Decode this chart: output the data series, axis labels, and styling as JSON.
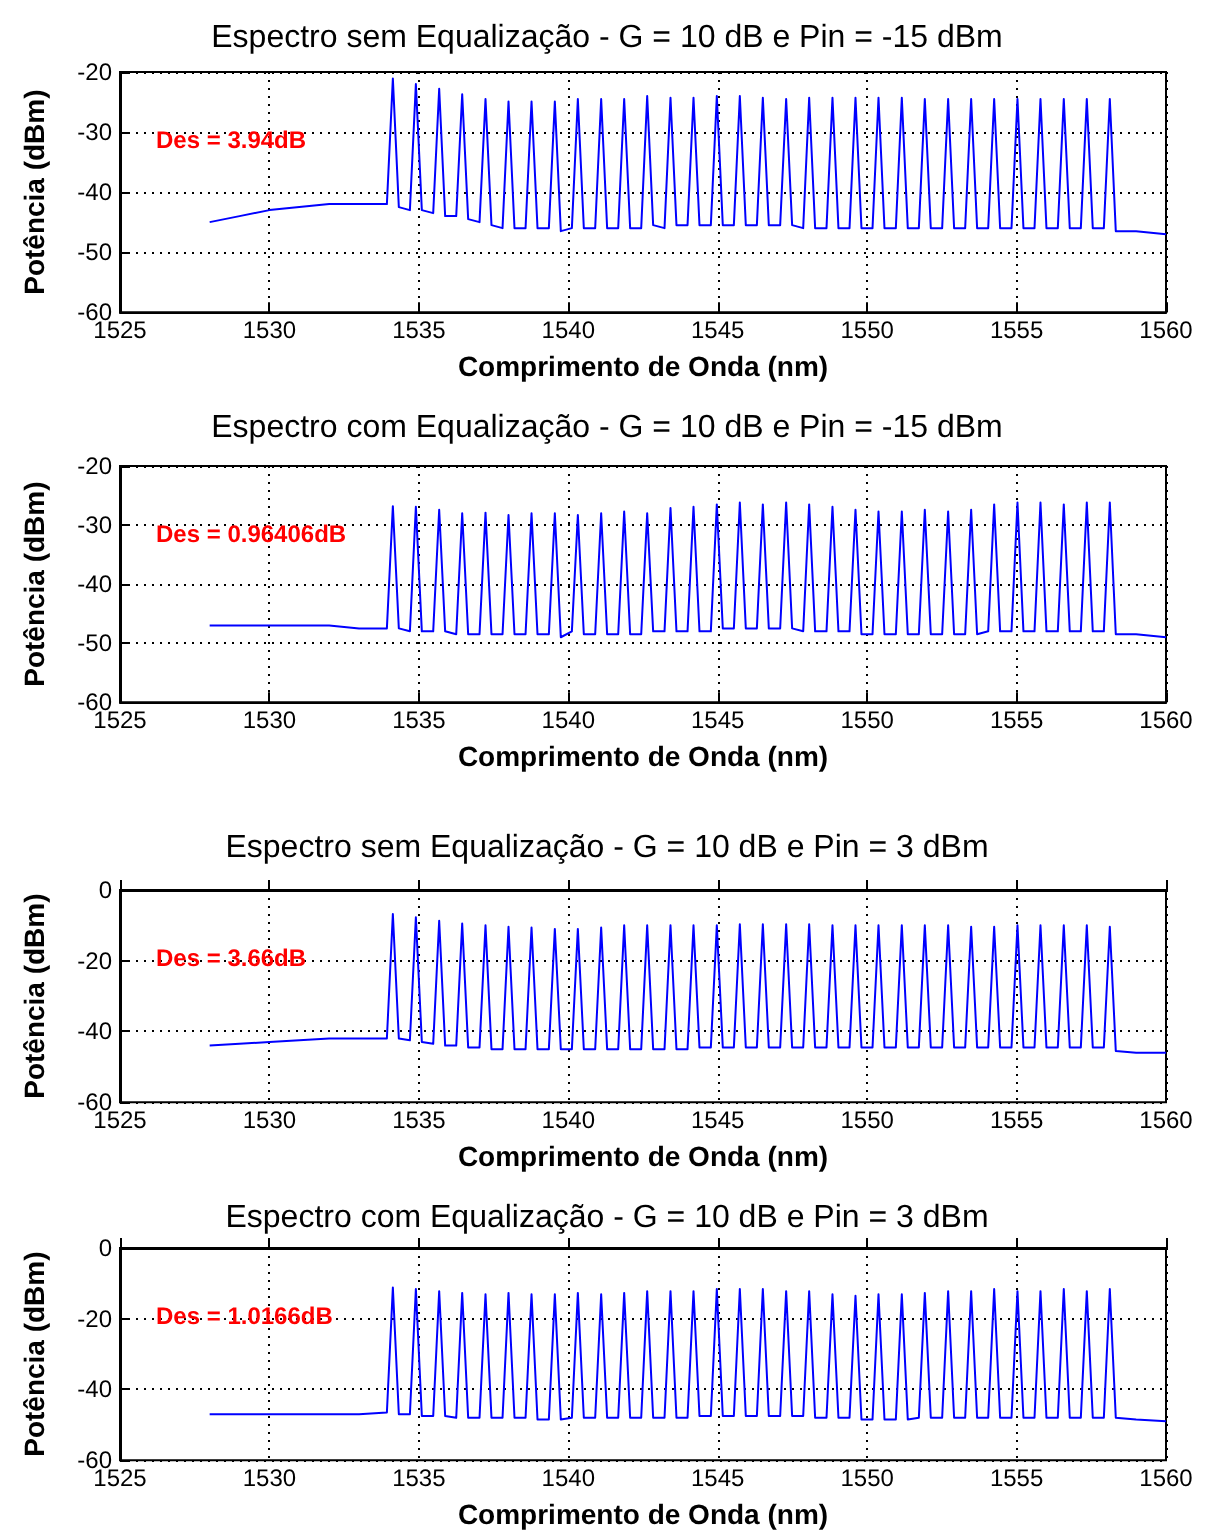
{
  "chart_data": [
    {
      "type": "line",
      "title": "Espectro sem Equalização - G = 10 dB e Pin = -15 dBm",
      "xlabel": "Comprimento de Onda (nm)",
      "ylabel": "Potência (dBm)",
      "annotations": [
        "Des = 3.94dB"
      ],
      "x": [
        1528,
        1529,
        1530,
        1531,
        1532,
        1533,
        1533.93,
        1534.13,
        1534.33,
        1534.7,
        1534.9,
        1535.1,
        1535.48,
        1535.68,
        1535.88,
        1536.25,
        1536.45,
        1536.65,
        1537.03,
        1537.23,
        1537.43,
        1537.8,
        1538.0,
        1538.2,
        1538.57,
        1538.77,
        1538.97,
        1539.35,
        1539.55,
        1539.75,
        1540.12,
        1540.32,
        1540.52,
        1540.9,
        1541.1,
        1541.3,
        1541.67,
        1541.87,
        1542.07,
        1542.44,
        1542.64,
        1542.84,
        1543.22,
        1543.42,
        1543.62,
        1543.99,
        1544.19,
        1544.39,
        1544.77,
        1544.97,
        1545.17,
        1545.54,
        1545.74,
        1545.94,
        1546.31,
        1546.51,
        1546.71,
        1547.09,
        1547.29,
        1547.49,
        1547.86,
        1548.06,
        1548.26,
        1548.64,
        1548.84,
        1549.04,
        1549.41,
        1549.61,
        1549.81,
        1550.18,
        1550.38,
        1550.58,
        1550.96,
        1551.16,
        1551.36,
        1551.73,
        1551.93,
        1552.13,
        1552.51,
        1552.71,
        1552.91,
        1553.28,
        1553.48,
        1553.68,
        1554.05,
        1554.25,
        1554.45,
        1554.83,
        1555.03,
        1555.23,
        1555.6,
        1555.8,
        1556.0,
        1556.38,
        1556.58,
        1556.78,
        1557.15,
        1557.35,
        1557.55,
        1557.92,
        1558.12,
        1558.32,
        1559,
        1560
      ],
      "series": [
        {
          "color": "#0000ff",
          "values": [
            -45,
            -44,
            -43,
            -42.5,
            -42,
            -42,
            -42,
            -21.1,
            -42.5,
            -43,
            -22,
            -43,
            -43.5,
            -22.8,
            -44,
            -44,
            -23.7,
            -44.5,
            -45,
            -24.5,
            -45.5,
            -46,
            -24.9,
            -46,
            -46,
            -24.9,
            -46,
            -46,
            -24.9,
            -46.5,
            -46,
            -24.5,
            -46,
            -46,
            -24.5,
            -46,
            -46,
            -24.5,
            -46,
            -46,
            -24,
            -45.5,
            -46,
            -24.3,
            -45.5,
            -45.5,
            -24.3,
            -45.5,
            -45.5,
            -24,
            -45.5,
            -45.5,
            -24,
            -45.5,
            -45.5,
            -24.3,
            -45.5,
            -45.5,
            -24.5,
            -45.5,
            -46,
            -24.3,
            -46,
            -46,
            -24.3,
            -46,
            -46,
            -24.3,
            -46,
            -46,
            -24.3,
            -46,
            -46,
            -24.3,
            -46,
            -46,
            -24.5,
            -46,
            -46,
            -24.5,
            -46,
            -46,
            -24.5,
            -46,
            -46,
            -24.5,
            -46,
            -46,
            -24.5,
            -46,
            -46,
            -24.5,
            -46,
            -46,
            -24.5,
            -46,
            -46,
            -24.5,
            -46,
            -46,
            -24.5,
            -46.5,
            -46.5,
            -47
          ]
        }
      ],
      "xlim": [
        1525,
        1560
      ],
      "xticks": [
        1525,
        1530,
        1535,
        1540,
        1545,
        1550,
        1555,
        1560
      ],
      "ylim": [
        -60,
        -20
      ],
      "yticks": [
        -60,
        -50,
        -40,
        -30,
        -20
      ],
      "grid": true
    },
    {
      "type": "line",
      "title": "Espectro com Equalização - G = 10 dB e Pin = -15 dBm",
      "xlabel": "Comprimento de Onda (nm)",
      "ylabel": "Potência (dBm)",
      "annotations": [
        "Des = 0.96406dB"
      ],
      "x": [
        1528,
        1529,
        1530,
        1531,
        1532,
        1533,
        1533.93,
        1534.13,
        1534.33,
        1534.7,
        1534.9,
        1535.1,
        1535.48,
        1535.68,
        1535.88,
        1536.25,
        1536.45,
        1536.65,
        1537.03,
        1537.23,
        1537.43,
        1537.8,
        1538.0,
        1538.2,
        1538.57,
        1538.77,
        1538.97,
        1539.35,
        1539.55,
        1539.75,
        1540.12,
        1540.32,
        1540.52,
        1540.9,
        1541.1,
        1541.3,
        1541.67,
        1541.87,
        1542.07,
        1542.44,
        1542.64,
        1542.84,
        1543.22,
        1543.42,
        1543.62,
        1543.99,
        1544.19,
        1544.39,
        1544.77,
        1544.97,
        1545.17,
        1545.54,
        1545.74,
        1545.94,
        1546.31,
        1546.51,
        1546.71,
        1547.09,
        1547.29,
        1547.49,
        1547.86,
        1548.06,
        1548.26,
        1548.64,
        1548.84,
        1549.04,
        1549.41,
        1549.61,
        1549.81,
        1550.18,
        1550.38,
        1550.58,
        1550.96,
        1551.16,
        1551.36,
        1551.73,
        1551.93,
        1552.13,
        1552.51,
        1552.71,
        1552.91,
        1553.28,
        1553.48,
        1553.68,
        1554.05,
        1554.25,
        1554.45,
        1554.83,
        1555.03,
        1555.23,
        1555.6,
        1555.8,
        1556.0,
        1556.38,
        1556.58,
        1556.78,
        1557.15,
        1557.35,
        1557.55,
        1557.92,
        1558.12,
        1558.32,
        1559,
        1560
      ],
      "series": [
        {
          "color": "#0000ff",
          "values": [
            -47,
            -47,
            -47,
            -47,
            -47,
            -47.5,
            -47.5,
            -26.8,
            -47.5,
            -48,
            -26.9,
            -48,
            -48,
            -27.4,
            -48,
            -48.5,
            -28,
            -48.5,
            -48.5,
            -27.9,
            -48.5,
            -48.5,
            -28.3,
            -48.5,
            -48.5,
            -28,
            -48.5,
            -48.5,
            -28,
            -49,
            -48,
            -28.3,
            -48.5,
            -48.5,
            -28,
            -48.5,
            -48.5,
            -27.7,
            -48.5,
            -48.5,
            -28,
            -48,
            -48,
            -27.1,
            -48,
            -48,
            -26.9,
            -48,
            -48,
            -26.5,
            -47.5,
            -47.5,
            -26.2,
            -47.5,
            -47.5,
            -26.5,
            -47.5,
            -47.5,
            -26.2,
            -47.5,
            -48,
            -26.5,
            -48,
            -48,
            -26.9,
            -48,
            -48,
            -27.4,
            -48.5,
            -48.5,
            -27.7,
            -48.5,
            -48.5,
            -27.7,
            -48.5,
            -48.5,
            -27.4,
            -48.5,
            -48.5,
            -27.7,
            -48.5,
            -48.5,
            -27.4,
            -48.5,
            -48,
            -26.5,
            -48,
            -48,
            -26.2,
            -48,
            -48,
            -26.2,
            -48,
            -48,
            -26.5,
            -48,
            -48,
            -26.2,
            -48,
            -48,
            -26.2,
            -48.5,
            -48.5,
            -49
          ]
        }
      ],
      "xlim": [
        1525,
        1560
      ],
      "xticks": [
        1525,
        1530,
        1535,
        1540,
        1545,
        1550,
        1555,
        1560
      ],
      "ylim": [
        -60,
        -20
      ],
      "yticks": [
        -60,
        -50,
        -40,
        -30,
        -20
      ],
      "grid": true
    },
    {
      "type": "line",
      "title": "Espectro sem Equalização - G = 10 dB e Pin = 3 dBm",
      "xlabel": "Comprimento de Onda (nm)",
      "ylabel": "Potência (dBm)",
      "annotations": [
        "Des = 3.66dB"
      ],
      "x": [
        1528,
        1529,
        1530,
        1531,
        1532,
        1533,
        1533.93,
        1534.13,
        1534.33,
        1534.7,
        1534.9,
        1535.1,
        1535.48,
        1535.68,
        1535.88,
        1536.25,
        1536.45,
        1536.65,
        1537.03,
        1537.23,
        1537.43,
        1537.8,
        1538.0,
        1538.2,
        1538.57,
        1538.77,
        1538.97,
        1539.35,
        1539.55,
        1539.75,
        1540.12,
        1540.32,
        1540.52,
        1540.9,
        1541.1,
        1541.3,
        1541.67,
        1541.87,
        1542.07,
        1542.44,
        1542.64,
        1542.84,
        1543.22,
        1543.42,
        1543.62,
        1543.99,
        1544.19,
        1544.39,
        1544.77,
        1544.97,
        1545.17,
        1545.54,
        1545.74,
        1545.94,
        1546.31,
        1546.51,
        1546.71,
        1547.09,
        1547.29,
        1547.49,
        1547.86,
        1548.06,
        1548.26,
        1548.64,
        1548.84,
        1549.04,
        1549.41,
        1549.61,
        1549.81,
        1550.18,
        1550.38,
        1550.58,
        1550.96,
        1551.16,
        1551.36,
        1551.73,
        1551.93,
        1552.13,
        1552.51,
        1552.71,
        1552.91,
        1553.28,
        1553.48,
        1553.68,
        1554.05,
        1554.25,
        1554.45,
        1554.83,
        1555.03,
        1555.23,
        1555.6,
        1555.8,
        1556.0,
        1556.38,
        1556.58,
        1556.78,
        1557.15,
        1557.35,
        1557.55,
        1557.92,
        1558.12,
        1558.32,
        1559,
        1560
      ],
      "series": [
        {
          "color": "#0000ff",
          "values": [
            -44,
            -43.5,
            -43,
            -42.5,
            -42,
            -42,
            -42,
            -6.8,
            -42,
            -42.5,
            -7.7,
            -43,
            -43.5,
            -8.7,
            -44,
            -44,
            -9.5,
            -44.5,
            -44.5,
            -10,
            -45,
            -45,
            -10.4,
            -45,
            -45,
            -10.6,
            -45,
            -45,
            -11,
            -45,
            -45,
            -11,
            -45,
            -45,
            -10.6,
            -45,
            -45,
            -10,
            -45,
            -45,
            -10,
            -45,
            -45,
            -10,
            -45,
            -45,
            -10,
            -44.5,
            -44.5,
            -10,
            -44.5,
            -44.5,
            -9.7,
            -44.5,
            -44.5,
            -9.7,
            -44.5,
            -44.5,
            -9.7,
            -44.5,
            -44.5,
            -9.7,
            -44.5,
            -44.5,
            -10,
            -44.5,
            -44.5,
            -10,
            -44.5,
            -44.5,
            -10,
            -44.5,
            -44.5,
            -10,
            -44.5,
            -44.5,
            -10,
            -44.5,
            -44.5,
            -10,
            -44.5,
            -44.5,
            -10.4,
            -44.5,
            -44.5,
            -10.4,
            -44.5,
            -44.5,
            -10,
            -44.5,
            -44.5,
            -10,
            -44.5,
            -44.5,
            -10,
            -44.5,
            -44.5,
            -10,
            -44.5,
            -44.5,
            -10.4,
            -45.5,
            -46,
            -46
          ]
        }
      ],
      "xlim": [
        1525,
        1560
      ],
      "xticks": [
        1525,
        1530,
        1535,
        1540,
        1545,
        1550,
        1555,
        1560
      ],
      "ylim": [
        -60,
        0
      ],
      "yticks": [
        -60,
        -40,
        -20,
        0
      ],
      "grid": true
    },
    {
      "type": "line",
      "title": "Espectro com Equalização - G = 10 dB e Pin = 3 dBm",
      "xlabel": "Comprimento de Onda (nm)",
      "ylabel": "Potência (dBm)",
      "annotations": [
        "Des = 1.0166dB"
      ],
      "x": [
        1528,
        1529,
        1530,
        1531,
        1532,
        1533,
        1533.93,
        1534.13,
        1534.33,
        1534.7,
        1534.9,
        1535.1,
        1535.48,
        1535.68,
        1535.88,
        1536.25,
        1536.45,
        1536.65,
        1537.03,
        1537.23,
        1537.43,
        1537.8,
        1538.0,
        1538.2,
        1538.57,
        1538.77,
        1538.97,
        1539.35,
        1539.55,
        1539.75,
        1540.12,
        1540.32,
        1540.52,
        1540.9,
        1541.1,
        1541.3,
        1541.67,
        1541.87,
        1542.07,
        1542.44,
        1542.64,
        1542.84,
        1543.22,
        1543.42,
        1543.62,
        1543.99,
        1544.19,
        1544.39,
        1544.77,
        1544.97,
        1545.17,
        1545.54,
        1545.74,
        1545.94,
        1546.31,
        1546.51,
        1546.71,
        1547.09,
        1547.29,
        1547.49,
        1547.86,
        1548.06,
        1548.26,
        1548.64,
        1548.84,
        1549.04,
        1549.41,
        1549.61,
        1549.81,
        1550.18,
        1550.38,
        1550.58,
        1550.96,
        1551.16,
        1551.36,
        1551.73,
        1551.93,
        1552.13,
        1552.51,
        1552.71,
        1552.91,
        1553.28,
        1553.48,
        1553.68,
        1554.05,
        1554.25,
        1554.45,
        1554.83,
        1555.03,
        1555.23,
        1555.6,
        1555.8,
        1556.0,
        1556.38,
        1556.58,
        1556.78,
        1557.15,
        1557.35,
        1557.55,
        1557.92,
        1558.12,
        1558.32,
        1559,
        1560
      ],
      "series": [
        {
          "color": "#0000ff",
          "values": [
            -47,
            -47,
            -47,
            -47,
            -47,
            -47,
            -46.5,
            -11.2,
            -47,
            -47,
            -11.6,
            -47.5,
            -47.5,
            -12.2,
            -47.5,
            -48,
            -12.7,
            -48,
            -48,
            -13.1,
            -48,
            -48,
            -12.7,
            -48,
            -48,
            -13.1,
            -48.5,
            -48.5,
            -13.1,
            -48.5,
            -48,
            -12.7,
            -48,
            -48,
            -13.1,
            -48,
            -48,
            -12.7,
            -48,
            -48,
            -12.2,
            -48,
            -48,
            -12.2,
            -48,
            -48,
            -12.2,
            -47.5,
            -47.5,
            -11.6,
            -47.5,
            -47.5,
            -11.6,
            -47.5,
            -47.5,
            -11.6,
            -47.5,
            -47.5,
            -12.2,
            -47.5,
            -47.5,
            -12.2,
            -48,
            -48,
            -13.1,
            -48,
            -48,
            -13.5,
            -48.5,
            -48.5,
            -13.1,
            -48.5,
            -48.5,
            -13.1,
            -48.5,
            -48,
            -12.7,
            -48,
            -48,
            -12.2,
            -48,
            -48,
            -12.2,
            -48,
            -48,
            -11.6,
            -48,
            -48,
            -12.2,
            -48,
            -48,
            -12.2,
            -48,
            -48,
            -11.6,
            -48,
            -48,
            -12.2,
            -48,
            -48,
            -11.6,
            -48,
            -48.5,
            -49
          ]
        }
      ],
      "xlim": [
        1525,
        1560
      ],
      "xticks": [
        1525,
        1530,
        1535,
        1540,
        1545,
        1550,
        1555,
        1560
      ],
      "ylim": [
        -60,
        0
      ],
      "yticks": [
        -60,
        -40,
        -20,
        0
      ],
      "grid": true
    }
  ]
}
